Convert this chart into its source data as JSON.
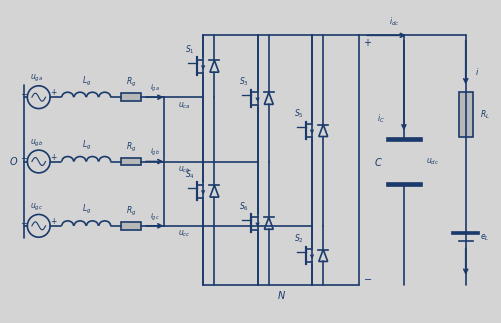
{
  "bg_color": "#d4d4d4",
  "line_color": "#1a3a6b",
  "line_width": 1.2,
  "text_color": "#1a3a6b",
  "figsize": [
    5.01,
    3.23
  ],
  "dpi": 100
}
